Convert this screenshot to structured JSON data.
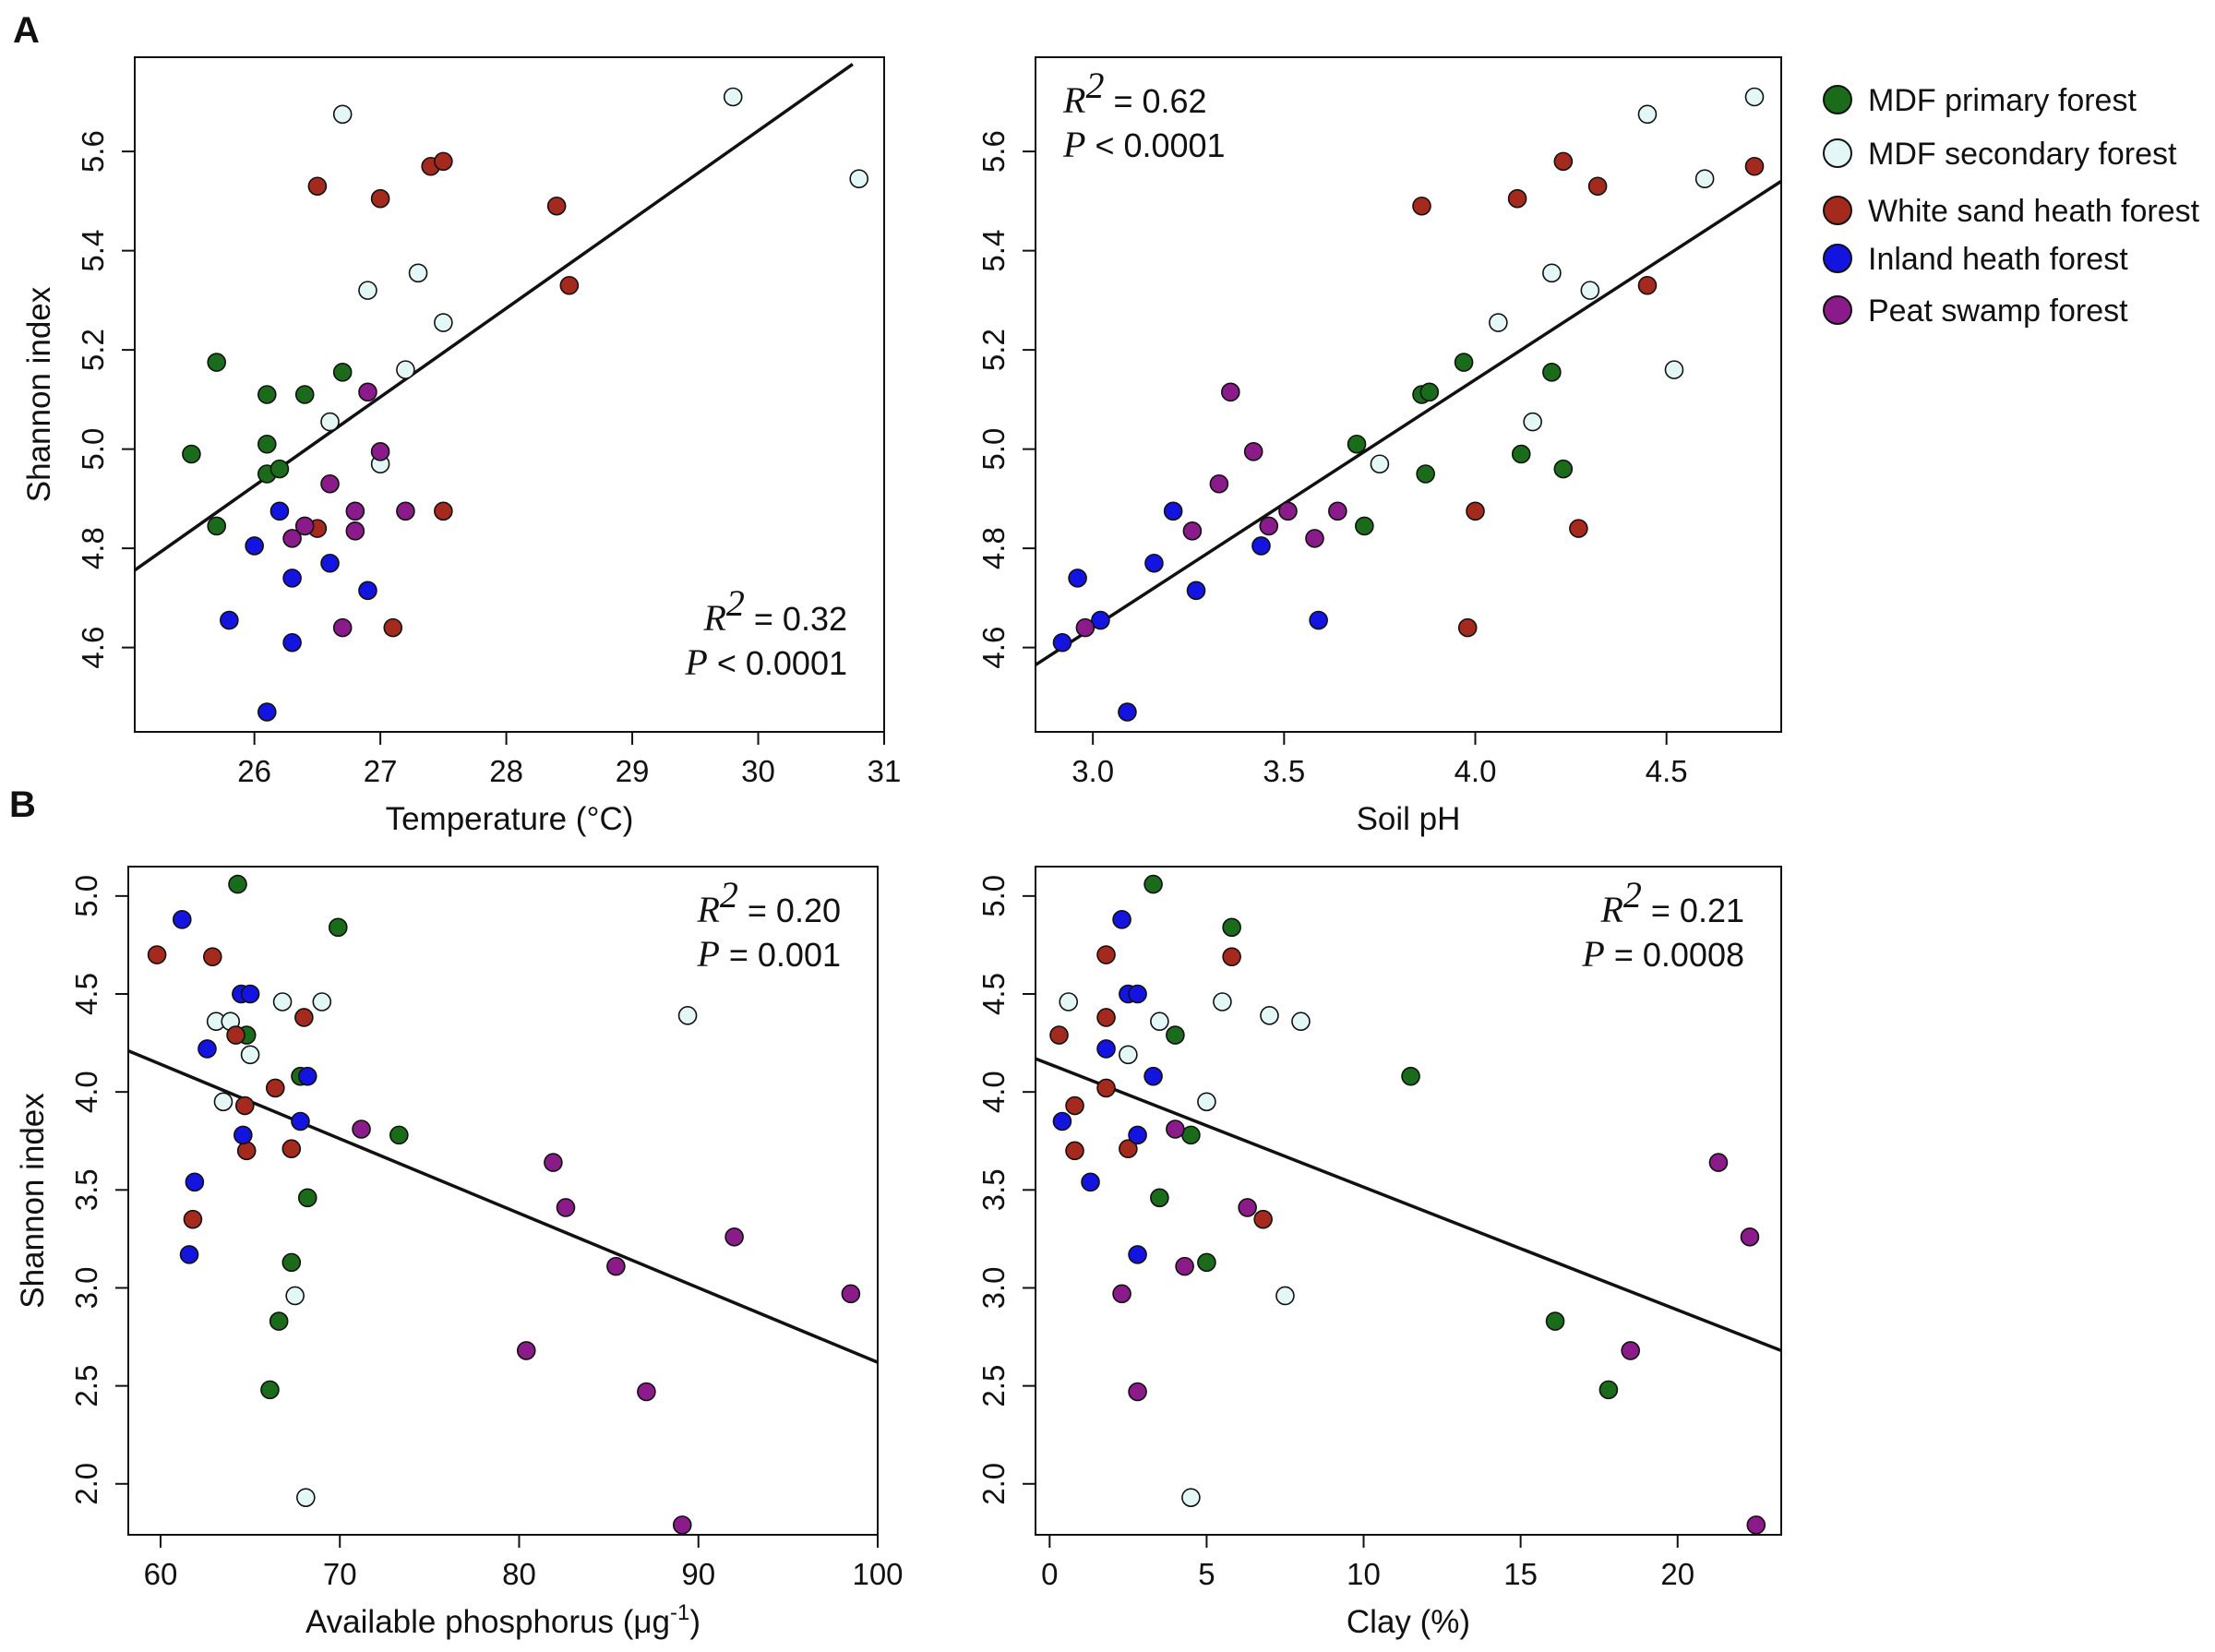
{
  "figure": {
    "panel_letters": [
      "A",
      "B"
    ]
  },
  "legend": {
    "items": [
      {
        "label": "MDF primary forest",
        "color": "#1a6b1a"
      },
      {
        "label": "MDF secondary forest",
        "color": "#e4f7f7"
      },
      {
        "label": "White sand heath forest",
        "color": "#a52a1e"
      },
      {
        "label": "Inland heath forest",
        "color": "#1414e0"
      },
      {
        "label": "Peat swamp forest",
        "color": "#8b1a8b"
      }
    ]
  },
  "chart_data": [
    {
      "type": "scatter",
      "id": "temp",
      "panel": "A",
      "xlabel": "Temperature (°C)",
      "ylabel": "Shannon index",
      "xlim": [
        25.05,
        31.0
      ],
      "ylim": [
        4.43,
        5.79
      ],
      "xticks": [
        26,
        27,
        28,
        29,
        30,
        31
      ],
      "yticks": [
        4.6,
        4.8,
        5.0,
        5.2,
        5.4,
        5.6
      ],
      "ydecimals": 1,
      "stats": {
        "r2_label": "R",
        "r2_exp": "2",
        "r2_value": "= 0.32",
        "p_label": "P",
        "p_value": "< 0.0001",
        "position": "bottom-right"
      },
      "fit_line": {
        "x": [
          25.05,
          30.75
        ],
        "y": [
          4.756,
          5.776
        ]
      },
      "series": [
        {
          "name": "MDF primary forest",
          "points": [
            [
              25.5,
              4.99
            ],
            [
              25.7,
              4.845
            ],
            [
              25.7,
              5.175
            ],
            [
              26.1,
              5.11
            ],
            [
              26.1,
              5.01
            ],
            [
              26.1,
              4.95
            ],
            [
              26.2,
              4.96
            ],
            [
              26.4,
              5.11
            ],
            [
              26.7,
              5.155
            ]
          ]
        },
        {
          "name": "MDF secondary forest",
          "points": [
            [
              26.6,
              5.055
            ],
            [
              26.7,
              5.675
            ],
            [
              26.9,
              5.32
            ],
            [
              27.0,
              4.97
            ],
            [
              27.2,
              5.16
            ],
            [
              27.3,
              5.355
            ],
            [
              27.5,
              5.255
            ],
            [
              29.8,
              5.71
            ],
            [
              30.8,
              5.545
            ]
          ]
        },
        {
          "name": "White sand heath forest",
          "points": [
            [
              26.5,
              4.84
            ],
            [
              26.5,
              5.53
            ],
            [
              27.0,
              5.505
            ],
            [
              27.1,
              4.64
            ],
            [
              27.4,
              5.57
            ],
            [
              27.5,
              5.58
            ],
            [
              27.5,
              4.875
            ],
            [
              28.4,
              5.49
            ],
            [
              28.5,
              5.33
            ]
          ]
        },
        {
          "name": "Inland heath forest",
          "points": [
            [
              25.8,
              4.655
            ],
            [
              26.0,
              4.805
            ],
            [
              26.1,
              4.47
            ],
            [
              26.2,
              4.875
            ],
            [
              26.3,
              4.74
            ],
            [
              26.3,
              4.61
            ],
            [
              26.6,
              4.77
            ],
            [
              26.9,
              4.715
            ]
          ]
        },
        {
          "name": "Peat swamp forest",
          "points": [
            [
              26.3,
              4.82
            ],
            [
              26.4,
              4.845
            ],
            [
              26.6,
              4.93
            ],
            [
              26.7,
              4.64
            ],
            [
              26.8,
              4.835
            ],
            [
              26.8,
              4.875
            ],
            [
              26.9,
              5.115
            ],
            [
              27.0,
              4.995
            ],
            [
              27.2,
              4.875
            ]
          ]
        }
      ]
    },
    {
      "type": "scatter",
      "id": "ph",
      "panel": "A",
      "xlabel": "Soil pH",
      "ylabel": "",
      "xlim": [
        2.85,
        4.8
      ],
      "ylim": [
        4.43,
        5.79
      ],
      "xticks": [
        3.0,
        3.5,
        4.0,
        4.5
      ],
      "yticks": [
        4.6,
        4.8,
        5.0,
        5.2,
        5.4,
        5.6
      ],
      "ydecimals": 1,
      "stats": {
        "r2_label": "R",
        "r2_exp": "2",
        "r2_value": "= 0.62",
        "p_label": "P",
        "p_value": "< 0.0001",
        "position": "top-left"
      },
      "fit_line": {
        "x": [
          2.85,
          4.8
        ],
        "y": [
          4.565,
          5.54
        ]
      },
      "series": [
        {
          "name": "MDF primary forest",
          "points": [
            [
              3.69,
              5.01
            ],
            [
              3.71,
              4.845
            ],
            [
              3.86,
              5.11
            ],
            [
              3.87,
              4.95
            ],
            [
              3.88,
              5.115
            ],
            [
              3.97,
              5.175
            ],
            [
              4.12,
              4.99
            ],
            [
              4.2,
              5.155
            ],
            [
              4.23,
              4.96
            ]
          ]
        },
        {
          "name": "MDF secondary forest",
          "points": [
            [
              3.75,
              4.97
            ],
            [
              4.06,
              5.255
            ],
            [
              4.15,
              5.055
            ],
            [
              4.2,
              5.355
            ],
            [
              4.3,
              5.32
            ],
            [
              4.45,
              5.675
            ],
            [
              4.52,
              5.16
            ],
            [
              4.6,
              5.545
            ],
            [
              4.73,
              5.71
            ]
          ]
        },
        {
          "name": "White sand heath forest",
          "points": [
            [
              3.86,
              5.49
            ],
            [
              3.98,
              4.64
            ],
            [
              4.0,
              4.875
            ],
            [
              4.11,
              5.505
            ],
            [
              4.23,
              5.58
            ],
            [
              4.27,
              4.84
            ],
            [
              4.32,
              5.53
            ],
            [
              4.45,
              5.33
            ],
            [
              4.73,
              5.57
            ]
          ]
        },
        {
          "name": "Inland heath forest",
          "points": [
            [
              2.92,
              4.61
            ],
            [
              2.96,
              4.74
            ],
            [
              3.02,
              4.655
            ],
            [
              3.09,
              4.47
            ],
            [
              3.16,
              4.77
            ],
            [
              3.21,
              4.875
            ],
            [
              3.27,
              4.715
            ],
            [
              3.44,
              4.805
            ],
            [
              3.59,
              4.655
            ]
          ]
        },
        {
          "name": "Peat swamp forest",
          "points": [
            [
              2.98,
              4.64
            ],
            [
              3.26,
              4.835
            ],
            [
              3.33,
              4.93
            ],
            [
              3.36,
              5.115
            ],
            [
              3.42,
              4.995
            ],
            [
              3.46,
              4.845
            ],
            [
              3.51,
              4.875
            ],
            [
              3.58,
              4.82
            ],
            [
              3.64,
              4.875
            ]
          ]
        }
      ]
    },
    {
      "type": "scatter",
      "id": "phos",
      "panel": "B",
      "xlabel": "Available phosphorus (μg",
      "xlabel_exp": "-1",
      "xlabel_end": ")",
      "ylabel": "Shannon index",
      "xlim": [
        58.2,
        100.0
      ],
      "ylim": [
        1.74,
        5.15
      ],
      "xticks": [
        60,
        70,
        80,
        90,
        100
      ],
      "yticks": [
        2.0,
        2.5,
        3.0,
        3.5,
        4.0,
        4.5,
        5.0
      ],
      "ydecimals": 1,
      "stats": {
        "r2_label": "R",
        "r2_exp": "2",
        "r2_value": "= 0.20",
        "p_label": "P",
        "p_value": "= 0.001",
        "position": "top-right"
      },
      "fit_line": {
        "x": [
          58.2,
          100.0
        ],
        "y": [
          4.21,
          2.62
        ]
      },
      "series": [
        {
          "name": "MDF primary forest",
          "points": [
            [
              64.3,
              5.06
            ],
            [
              64.8,
              4.29
            ],
            [
              66.1,
              2.48
            ],
            [
              66.6,
              2.83
            ],
            [
              67.3,
              3.13
            ],
            [
              67.8,
              4.08
            ],
            [
              68.2,
              3.46
            ],
            [
              69.9,
              4.84
            ],
            [
              73.3,
              3.78
            ]
          ]
        },
        {
          "name": "MDF secondary forest",
          "points": [
            [
              63.1,
              4.36
            ],
            [
              63.5,
              3.95
            ],
            [
              63.9,
              4.36
            ],
            [
              65.0,
              4.19
            ],
            [
              66.8,
              4.46
            ],
            [
              67.5,
              2.96
            ],
            [
              68.1,
              1.93
            ],
            [
              69.0,
              4.46
            ],
            [
              89.4,
              4.39
            ]
          ]
        },
        {
          "name": "White sand heath forest",
          "points": [
            [
              59.8,
              4.7
            ],
            [
              61.8,
              3.35
            ],
            [
              62.9,
              4.69
            ],
            [
              64.2,
              4.29
            ],
            [
              64.7,
              3.93
            ],
            [
              64.8,
              3.7
            ],
            [
              66.4,
              4.02
            ],
            [
              67.3,
              3.71
            ],
            [
              68.0,
              4.38
            ]
          ]
        },
        {
          "name": "Inland heath forest",
          "points": [
            [
              61.2,
              4.88
            ],
            [
              61.6,
              3.17
            ],
            [
              61.9,
              3.54
            ],
            [
              62.6,
              4.22
            ],
            [
              64.5,
              4.5
            ],
            [
              64.6,
              3.78
            ],
            [
              65.0,
              4.5
            ],
            [
              67.8,
              3.85
            ],
            [
              68.2,
              4.08
            ]
          ]
        },
        {
          "name": "Peat swamp forest",
          "points": [
            [
              71.2,
              3.81
            ],
            [
              80.4,
              2.68
            ],
            [
              81.9,
              3.64
            ],
            [
              82.6,
              3.41
            ],
            [
              85.4,
              3.11
            ],
            [
              87.1,
              2.47
            ],
            [
              89.1,
              1.79
            ],
            [
              92.0,
              3.26
            ],
            [
              98.5,
              2.97
            ]
          ]
        }
      ]
    },
    {
      "type": "scatter",
      "id": "clay",
      "panel": "B",
      "xlabel": "Clay (%)",
      "ylabel": "",
      "xlim": [
        -0.45,
        23.3
      ],
      "ylim": [
        1.74,
        5.15
      ],
      "xticks": [
        0,
        5,
        10,
        15,
        20
      ],
      "yticks": [
        2.0,
        2.5,
        3.0,
        3.5,
        4.0,
        4.5,
        5.0
      ],
      "ydecimals": 1,
      "stats": {
        "r2_label": "R",
        "r2_exp": "2",
        "r2_value": "= 0.21",
        "p_label": "P",
        "p_value": "= 0.0008",
        "position": "top-right"
      },
      "fit_line": {
        "x": [
          -0.45,
          23.3
        ],
        "y": [
          4.17,
          2.68
        ]
      },
      "series": [
        {
          "name": "MDF primary forest",
          "points": [
            [
              3.3,
              5.06
            ],
            [
              4.0,
              4.29
            ],
            [
              4.5,
              3.78
            ],
            [
              5.0,
              3.13
            ],
            [
              5.8,
              4.84
            ],
            [
              11.5,
              4.08
            ],
            [
              3.5,
              3.46
            ],
            [
              16.1,
              2.83
            ],
            [
              17.8,
              2.48
            ]
          ]
        },
        {
          "name": "MDF secondary forest",
          "points": [
            [
              0.6,
              4.46
            ],
            [
              2.5,
              4.19
            ],
            [
              3.5,
              4.36
            ],
            [
              5.0,
              3.95
            ],
            [
              5.5,
              4.46
            ],
            [
              7.0,
              4.39
            ],
            [
              8.0,
              4.36
            ],
            [
              7.5,
              2.96
            ],
            [
              4.5,
              1.93
            ]
          ]
        },
        {
          "name": "White sand heath forest",
          "points": [
            [
              0.3,
              4.29
            ],
            [
              0.8,
              3.93
            ],
            [
              0.8,
              3.7
            ],
            [
              1.8,
              4.7
            ],
            [
              1.8,
              4.38
            ],
            [
              1.8,
              4.02
            ],
            [
              2.5,
              3.71
            ],
            [
              5.8,
              4.69
            ],
            [
              6.8,
              3.35
            ]
          ]
        },
        {
          "name": "Inland heath forest",
          "points": [
            [
              0.4,
              3.85
            ],
            [
              1.3,
              3.54
            ],
            [
              1.8,
              4.22
            ],
            [
              2.3,
              4.88
            ],
            [
              2.5,
              4.5
            ],
            [
              2.8,
              4.5
            ],
            [
              2.8,
              3.78
            ],
            [
              2.8,
              3.17
            ],
            [
              3.3,
              4.08
            ]
          ]
        },
        {
          "name": "Peat swamp forest",
          "points": [
            [
              2.3,
              2.97
            ],
            [
              2.8,
              2.47
            ],
            [
              4.0,
              3.81
            ],
            [
              4.3,
              3.11
            ],
            [
              6.3,
              3.41
            ],
            [
              18.5,
              2.68
            ],
            [
              21.3,
              3.64
            ],
            [
              22.3,
              3.26
            ],
            [
              22.5,
              1.79
            ]
          ]
        }
      ]
    }
  ]
}
